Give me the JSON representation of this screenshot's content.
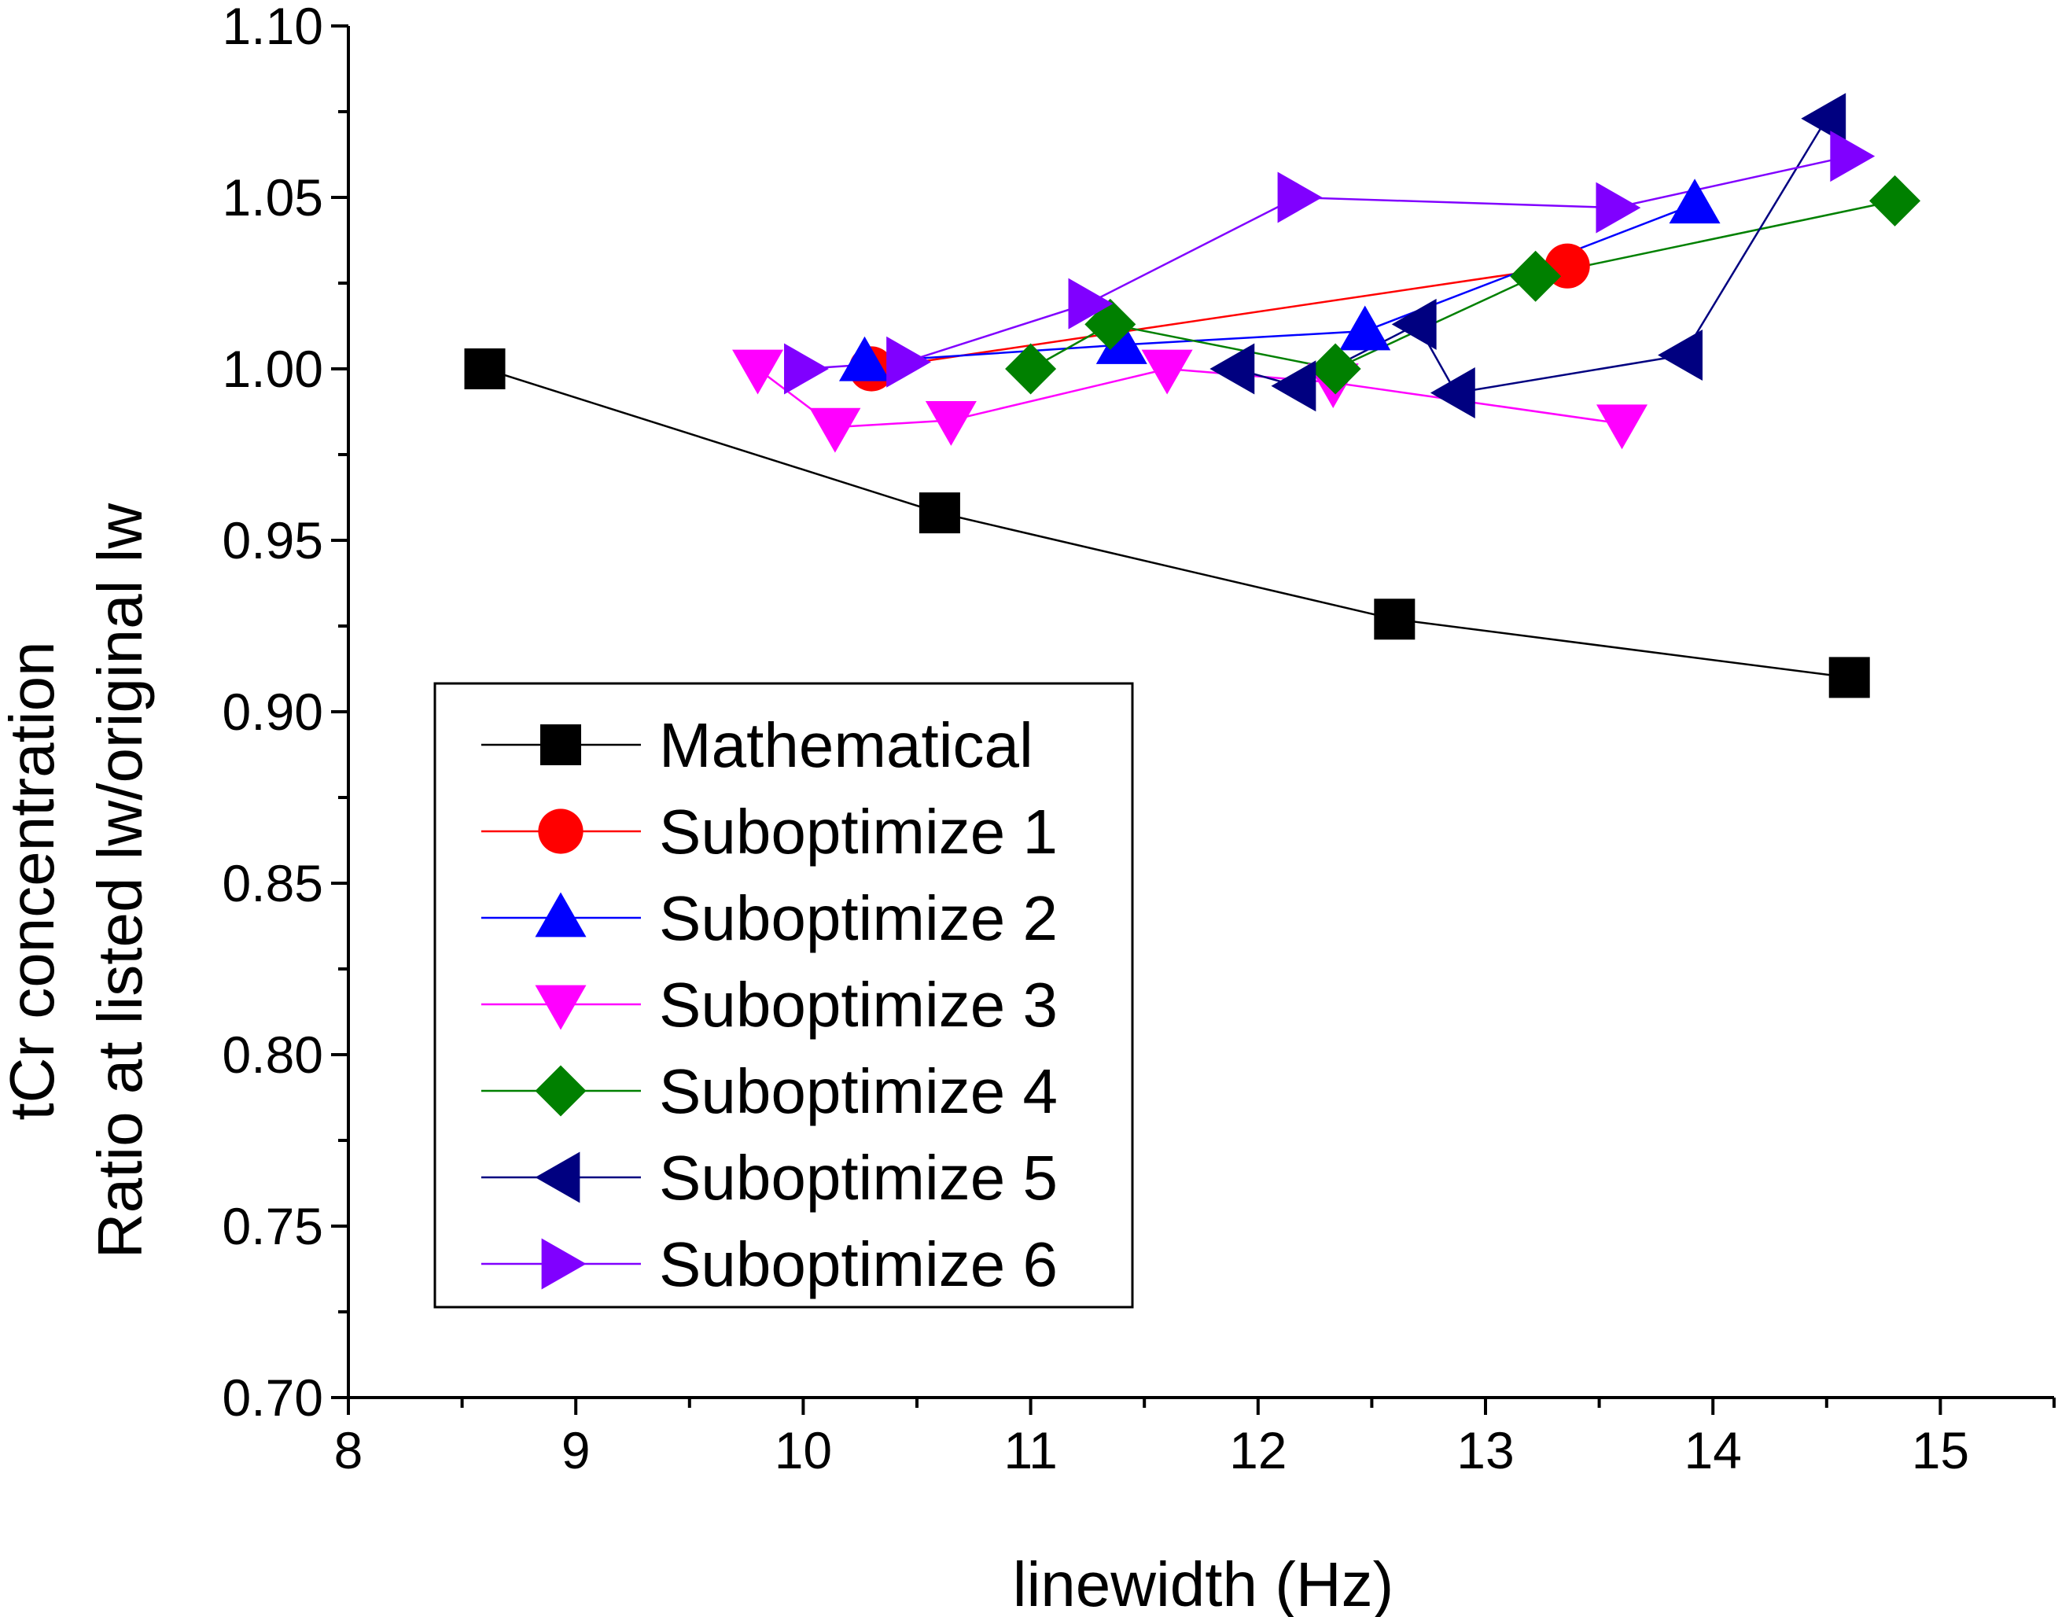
{
  "chart_data": {
    "type": "line",
    "title": "",
    "xlabel": "linewidth (Hz)",
    "ylabel_lines": [
      "tCr concentration",
      "Ratio at listed lw/original lw"
    ],
    "xlim": [
      8,
      15.5
    ],
    "ylim": [
      0.7,
      1.1
    ],
    "x_ticks": [
      8,
      9,
      10,
      11,
      12,
      13,
      14,
      15
    ],
    "x_tick_labels": [
      "8",
      "9",
      "10",
      "11",
      "12",
      "13",
      "14",
      "15"
    ],
    "y_ticks": [
      0.7,
      0.75,
      0.8,
      0.85,
      0.9,
      0.95,
      1.0,
      1.05,
      1.1
    ],
    "y_tick_labels": [
      "0.70",
      "0.75",
      "0.80",
      "0.85",
      "0.90",
      "0.95",
      "1.00",
      "1.05",
      "1.10"
    ],
    "grid": false,
    "legend_position": "lower-left",
    "series": [
      {
        "name": "Mathematical",
        "color": "#000000",
        "marker": "square",
        "x": [
          8.6,
          10.6,
          12.6,
          14.6
        ],
        "y": [
          1.0,
          0.958,
          0.927,
          0.91
        ]
      },
      {
        "name": "Suboptimize 1",
        "color": "#ff0000",
        "marker": "circle",
        "x": [
          10.3,
          13.36
        ],
        "y": [
          1.0,
          1.03
        ]
      },
      {
        "name": "Suboptimize 2",
        "color": "#0000ff",
        "marker": "triangle-up",
        "x": [
          10.27,
          11.4,
          12.47,
          13.92
        ],
        "y": [
          1.002,
          1.007,
          1.011,
          1.048
        ]
      },
      {
        "name": "Suboptimize 3",
        "color": "#ff00ff",
        "marker": "triangle-down",
        "x": [
          9.8,
          10.14,
          10.65,
          11.6,
          12.33,
          13.6
        ],
        "y": [
          1.0,
          0.983,
          0.985,
          1.0,
          0.996,
          0.984
        ]
      },
      {
        "name": "Suboptimize 4",
        "color": "#008000",
        "marker": "diamond",
        "x": [
          11.0,
          11.35,
          12.34,
          13.22,
          14.8
        ],
        "y": [
          1.0,
          1.013,
          1.0,
          1.027,
          1.049
        ]
      },
      {
        "name": "Suboptimize 5",
        "color": "#000080",
        "marker": "triangle-left",
        "x": [
          11.9,
          12.17,
          12.7,
          12.87,
          13.87,
          14.5
        ],
        "y": [
          1.0,
          0.995,
          1.013,
          0.993,
          1.004,
          1.073
        ]
      },
      {
        "name": "Suboptimize 6",
        "color": "#8000ff",
        "marker": "triangle-right",
        "x": [
          10.0,
          10.45,
          11.25,
          12.17,
          13.57,
          14.6
        ],
        "y": [
          1.0,
          1.002,
          1.019,
          1.05,
          1.047,
          1.062
        ]
      }
    ]
  }
}
